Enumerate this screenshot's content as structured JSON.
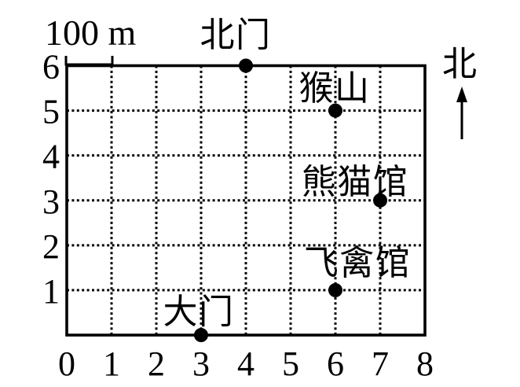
{
  "figure": {
    "background_color": "#ffffff",
    "ink_color": "#000000"
  },
  "chart_data": {
    "type": "scatter",
    "title": "",
    "xlabel": "",
    "ylabel": "",
    "xlim": [
      0,
      8
    ],
    "ylim": [
      0,
      6
    ],
    "grid": true,
    "grid_style": "dotted",
    "x_ticks": [
      "0",
      "1",
      "2",
      "3",
      "4",
      "5",
      "6",
      "7",
      "8"
    ],
    "y_ticks": [
      "1",
      "2",
      "3",
      "4",
      "5",
      "6"
    ],
    "points": [
      {
        "label": "北门",
        "x": 4,
        "y": 6
      },
      {
        "label": "猴山",
        "x": 6,
        "y": 5
      },
      {
        "label": "熊猫馆",
        "x": 7,
        "y": 3
      },
      {
        "label": "飞禽馆",
        "x": 6,
        "y": 1
      },
      {
        "label": "大门",
        "x": 3,
        "y": 0
      }
    ],
    "scale_bar": {
      "label": "100 m",
      "grid_cells": 1
    },
    "north_indicator": {
      "label": "北"
    }
  }
}
